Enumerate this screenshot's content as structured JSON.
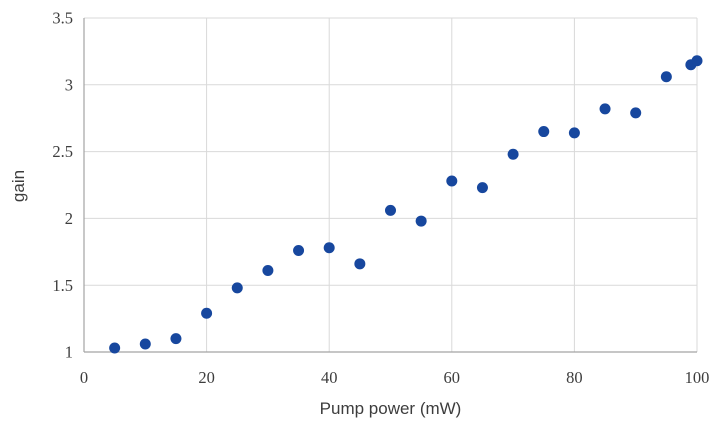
{
  "chart_data": {
    "type": "scatter",
    "title": "",
    "xlabel": "Pump power (mW)",
    "ylabel": "gain",
    "x": [
      5,
      10,
      15,
      20,
      25,
      30,
      35,
      40,
      45,
      50,
      55,
      60,
      65,
      70,
      75,
      80,
      85,
      90,
      95,
      99,
      100
    ],
    "y": [
      1.03,
      1.06,
      1.1,
      1.29,
      1.48,
      1.61,
      1.76,
      1.78,
      1.66,
      2.06,
      1.98,
      2.28,
      2.23,
      2.48,
      2.65,
      2.64,
      2.82,
      2.79,
      3.06,
      3.15,
      3.18
    ],
    "xlim": [
      0,
      100
    ],
    "ylim": [
      1,
      3.5
    ],
    "xticks": [
      0,
      20,
      40,
      60,
      80,
      100
    ],
    "yticks": [
      1,
      1.5,
      2,
      2.5,
      3,
      3.5
    ],
    "xtick_labels": [
      "0",
      "20",
      "40",
      "60",
      "80",
      "100"
    ],
    "ytick_labels": [
      "1",
      "1.5",
      "2",
      "2.5",
      "3",
      "3.5"
    ],
    "grid": true,
    "legend": false,
    "marker_color": "#17479e",
    "gridline_color": "#d9d9d9",
    "axis_color": "#a3a3a3",
    "text_color": "#3d3d3d"
  }
}
